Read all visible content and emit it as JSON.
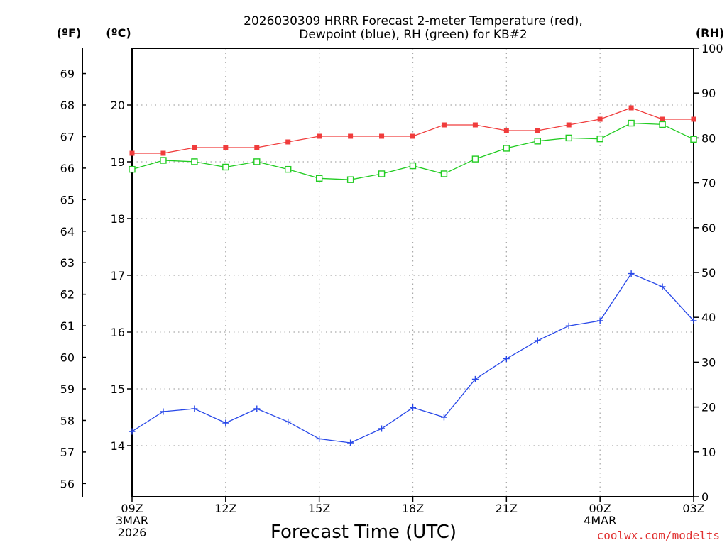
{
  "chart_data": {
    "type": "line",
    "title_line1": "2026030309 HRRR Forecast 2-meter Temperature (red),",
    "title_line2": "Dewpoint (blue), RH (green) for KB#2",
    "xlabel": "Forecast Time (UTC)",
    "credit": "coolwx.com/modelts",
    "units": {
      "fahrenheit": "(ºF)",
      "celsius": "(ºC)",
      "rh": "(RH)"
    },
    "x_hours": [
      0,
      1,
      2,
      3,
      4,
      5,
      6,
      7,
      8,
      9,
      10,
      11,
      12,
      13,
      14,
      15,
      16,
      17,
      18
    ],
    "x_ticks": [
      {
        "hour": 0,
        "lines": [
          "09Z",
          "3MAR",
          "2026"
        ]
      },
      {
        "hour": 3,
        "lines": [
          "12Z"
        ]
      },
      {
        "hour": 6,
        "lines": [
          "15Z"
        ]
      },
      {
        "hour": 9,
        "lines": [
          "18Z"
        ]
      },
      {
        "hour": 12,
        "lines": [
          "21Z"
        ]
      },
      {
        "hour": 15,
        "lines": [
          "00Z",
          "4MAR"
        ]
      },
      {
        "hour": 18,
        "lines": [
          "03Z"
        ]
      }
    ],
    "x_range": [
      0,
      18
    ],
    "celsius_range": [
      13.1,
      21.0
    ],
    "celsius_ticks": [
      14,
      15,
      16,
      17,
      18,
      19,
      20
    ],
    "fahrenheit_ticks": [
      56,
      57,
      58,
      59,
      60,
      61,
      62,
      63,
      64,
      65,
      66,
      67,
      68,
      69
    ],
    "rh_range": [
      0,
      100
    ],
    "rh_ticks": [
      0,
      10,
      20,
      30,
      40,
      50,
      60,
      70,
      80,
      90,
      100
    ],
    "series": [
      {
        "name": "Temperature",
        "axis": "celsius",
        "color": "#f03c3c",
        "marker": "filled-square",
        "values": [
          19.15,
          19.15,
          19.25,
          19.25,
          19.25,
          19.35,
          19.45,
          19.45,
          19.45,
          19.45,
          19.65,
          19.65,
          19.55,
          19.55,
          19.65,
          19.75,
          19.95,
          19.75,
          19.75
        ]
      },
      {
        "name": "Dewpoint",
        "axis": "celsius",
        "color": "#2848e8",
        "marker": "plus",
        "values": [
          14.25,
          14.6,
          14.65,
          14.4,
          14.65,
          14.42,
          14.12,
          14.05,
          14.3,
          14.67,
          14.5,
          15.17,
          15.53,
          15.85,
          16.11,
          16.2,
          17.03,
          16.8,
          16.2
        ]
      },
      {
        "name": "RH",
        "axis": "rh",
        "color": "#22cc22",
        "marker": "open-square",
        "values": [
          73,
          75,
          74.7,
          73.5,
          74.7,
          73,
          71,
          70.7,
          72,
          73.8,
          72,
          75.3,
          77.7,
          79.3,
          80,
          79.8,
          83.3,
          83,
          79.7
        ]
      }
    ]
  }
}
